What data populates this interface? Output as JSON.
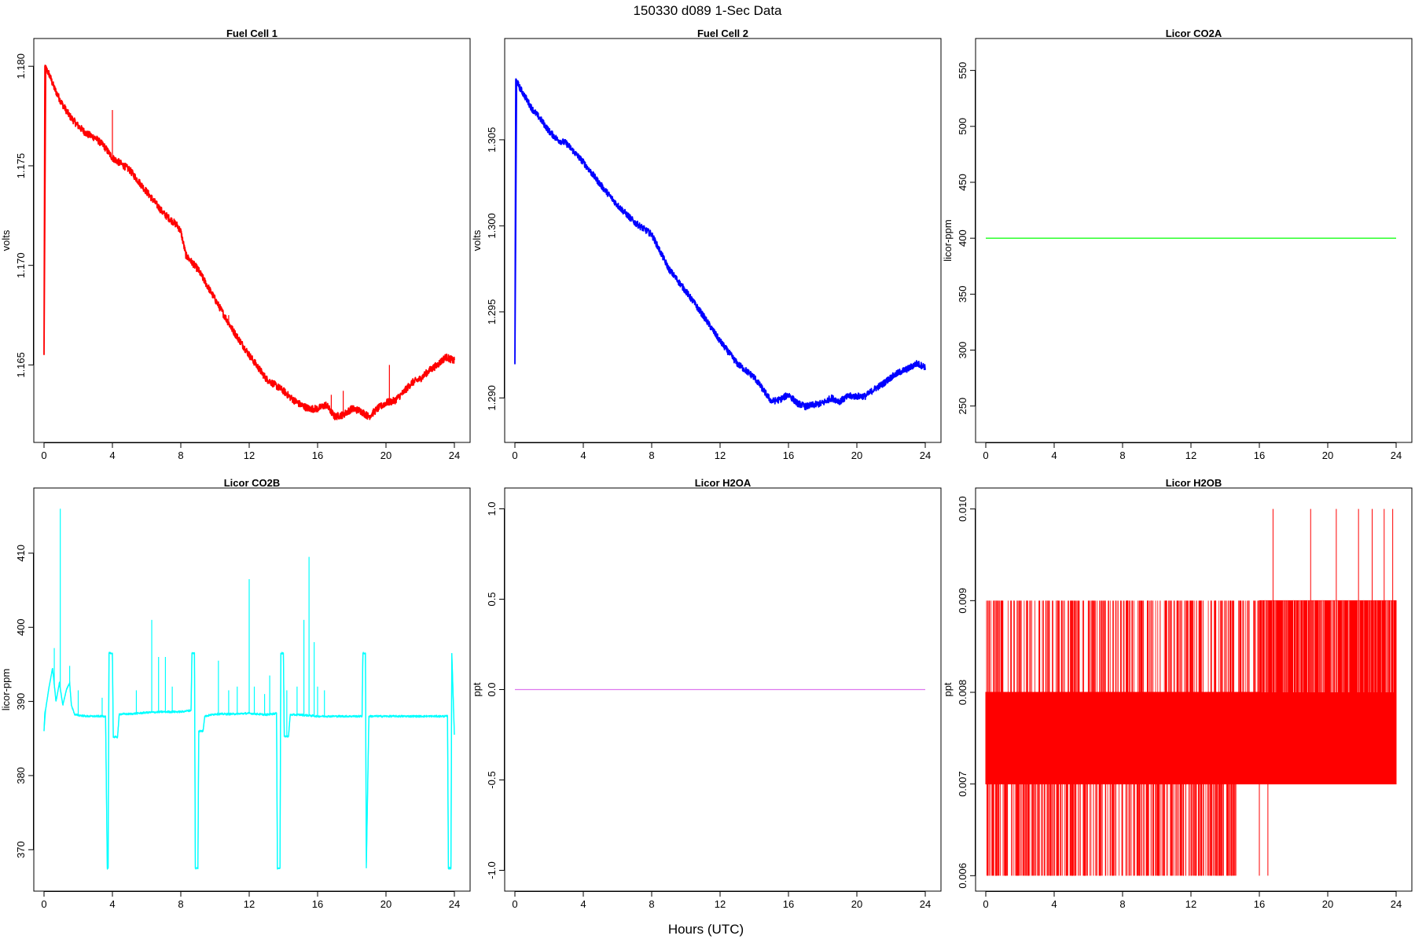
{
  "page": {
    "title": "150330   d089   1-Sec Data",
    "xlabel": "Hours (UTC)"
  },
  "chart_data": [
    {
      "type": "line",
      "title": "Fuel Cell 1",
      "ylabel": "volts",
      "xlim": [
        0,
        24
      ],
      "ylim": [
        1.1617,
        1.1808
      ],
      "xticks": [
        0,
        4,
        8,
        12,
        16,
        20,
        24
      ],
      "yticks": [
        1.165,
        1.17,
        1.175,
        1.18
      ],
      "ytick_labels": [
        "1.165",
        "1.170",
        "1.175",
        "1.180"
      ],
      "color": "#ff0000",
      "noise": 0.00018,
      "series": [
        {
          "x": [
            0,
            0.05,
            0.1,
            0.3,
            0.6,
            1.0,
            1.5,
            2.0,
            2.5,
            3.0,
            3.5,
            4.0,
            5.0,
            6.0,
            7.0,
            7.8,
            8.0,
            8.3,
            9.0,
            10.0,
            11.0,
            12.0,
            13.0,
            14.0,
            14.5,
            15.0,
            15.5,
            16.0,
            16.5,
            17.0,
            17.5,
            18.0,
            18.5,
            19.0,
            19.5,
            20.0,
            20.5,
            21.0,
            21.5,
            22.0,
            22.5,
            23.0,
            23.5,
            24.0
          ],
          "y": [
            1.1655,
            1.18,
            1.1799,
            1.1796,
            1.1789,
            1.1782,
            1.1775,
            1.177,
            1.1766,
            1.1764,
            1.176,
            1.1754,
            1.1748,
            1.1737,
            1.1726,
            1.172,
            1.1717,
            1.1705,
            1.1698,
            1.1683,
            1.1668,
            1.1655,
            1.1643,
            1.1637,
            1.1633,
            1.163,
            1.1628,
            1.1628,
            1.163,
            1.1624,
            1.1625,
            1.1628,
            1.1627,
            1.1624,
            1.1628,
            1.1631,
            1.1632,
            1.1636,
            1.1641,
            1.1643,
            1.1647,
            1.165,
            1.1654,
            1.1652
          ]
        }
      ],
      "spikes": [
        [
          4.0,
          1.1778
        ],
        [
          10.8,
          1.1675
        ],
        [
          17.5,
          1.1637
        ],
        [
          20.2,
          1.165
        ],
        [
          16.8,
          1.1635
        ]
      ]
    },
    {
      "type": "line",
      "title": "Fuel Cell 2",
      "ylabel": "volts",
      "xlim": [
        0,
        24
      ],
      "ylim": [
        1.2881,
        1.3102
      ],
      "xticks": [
        0,
        4,
        8,
        12,
        16,
        20,
        24
      ],
      "yticks": [
        1.29,
        1.295,
        1.3,
        1.305
      ],
      "ytick_labels": [
        "1.290",
        "1.295",
        "1.300",
        "1.305"
      ],
      "color": "#0000ff",
      "noise": 0.00019,
      "series": [
        {
          "x": [
            0,
            0.05,
            0.1,
            0.3,
            0.6,
            1.0,
            1.5,
            2.0,
            2.5,
            3.0,
            4.0,
            5.0,
            6.0,
            7.0,
            8.0,
            8.5,
            9.0,
            10.0,
            11.0,
            12.0,
            13.0,
            14.0,
            14.5,
            15.0,
            15.5,
            16.0,
            16.5,
            17.0,
            17.5,
            18.0,
            18.5,
            19.0,
            19.5,
            20.0,
            20.5,
            21.0,
            21.5,
            22.0,
            22.5,
            23.0,
            23.5,
            24.0
          ],
          "y": [
            1.292,
            1.3085,
            1.3084,
            1.308,
            1.3075,
            1.3068,
            1.3062,
            1.3055,
            1.305,
            1.3048,
            1.3037,
            1.3024,
            1.3012,
            1.3002,
            1.2995,
            1.2985,
            1.2975,
            1.2962,
            1.2948,
            1.2933,
            1.292,
            1.2912,
            1.2905,
            1.2898,
            1.2899,
            1.2902,
            1.2897,
            1.2895,
            1.2896,
            1.2897,
            1.29,
            1.2898,
            1.2901,
            1.2901,
            1.2901,
            1.2905,
            1.2908,
            1.2912,
            1.2915,
            1.2917,
            1.292,
            1.2918
          ]
        }
      ],
      "spikes": []
    },
    {
      "type": "line",
      "title": "Licor CO2A",
      "ylabel": "licor-ppm",
      "xlim": [
        0,
        24
      ],
      "ylim": [
        228,
        568
      ],
      "xticks": [
        0,
        4,
        8,
        12,
        16,
        20,
        24
      ],
      "yticks": [
        250,
        300,
        350,
        400,
        450,
        500,
        550
      ],
      "ytick_labels": [
        "250",
        "300",
        "350",
        "400",
        "450",
        "500",
        "550"
      ],
      "color": "#00ff00",
      "noise": 0,
      "series": [
        {
          "x": [
            0,
            24
          ],
          "y": [
            400,
            400
          ]
        }
      ],
      "spikes": []
    },
    {
      "type": "line",
      "title": "Licor CO2B",
      "ylabel": "licor-ppm",
      "xlim": [
        0,
        24
      ],
      "ylim": [
        366.0,
        417.2
      ],
      "xticks": [
        0,
        4,
        8,
        12,
        16,
        20,
        24
      ],
      "yticks": [
        370,
        380,
        390,
        400,
        410
      ],
      "ytick_labels": [
        "370",
        "380",
        "390",
        "400",
        "410"
      ],
      "color": "#00ffff",
      "noise": 0.15,
      "series": [
        {
          "x": [
            0,
            0.05,
            0.1,
            0.3,
            0.5,
            0.7,
            0.9,
            1.0,
            1.1,
            1.3,
            1.5,
            1.6,
            1.8,
            2.5,
            3.0,
            3.5,
            3.6,
            3.7,
            3.75,
            3.8,
            3.85,
            4.0,
            4.05,
            4.1,
            4.3,
            4.4,
            5.0,
            6.0,
            7.0,
            8.0,
            8.6,
            8.65,
            8.8,
            8.85,
            9.0,
            9.05,
            9.1,
            9.3,
            9.4,
            10.0,
            11.0,
            12.0,
            13.0,
            13.6,
            13.65,
            13.8,
            13.85,
            14.0,
            14.05,
            14.1,
            14.3,
            14.4,
            15.0,
            16.0,
            17.0,
            18.0,
            18.6,
            18.65,
            18.8,
            18.85,
            19.0,
            20.0,
            21.0,
            22.0,
            23.0,
            23.6,
            23.65,
            23.8,
            23.85,
            24.0
          ],
          "y": [
            386.0,
            388.5,
            389.0,
            392.0,
            394.5,
            390.0,
            392.5,
            391.0,
            389.5,
            391.5,
            392.5,
            389.5,
            388.2,
            388.0,
            388.0,
            388.0,
            388.0,
            367.5,
            367.5,
            396.5,
            396.5,
            396.5,
            385.2,
            385.2,
            385.2,
            388.3,
            388.3,
            388.5,
            388.6,
            388.6,
            388.8,
            396.5,
            396.5,
            367.5,
            367.5,
            386.0,
            386.0,
            386.0,
            388.0,
            388.3,
            388.3,
            388.4,
            388.2,
            388.4,
            367.5,
            367.5,
            396.5,
            396.5,
            385.3,
            385.3,
            385.3,
            388.2,
            388.2,
            388.0,
            388.0,
            388.0,
            388.0,
            396.5,
            396.5,
            367.5,
            388.0,
            388.0,
            388.0,
            388.0,
            388.0,
            388.0,
            367.5,
            367.5,
            396.5,
            385.5
          ]
        }
      ],
      "spikes": [
        [
          0.6,
          397.2
        ],
        [
          0.95,
          416.0
        ],
        [
          1.5,
          394.8
        ],
        [
          3.4,
          390.5
        ],
        [
          5.4,
          391.5
        ],
        [
          6.3,
          401.0
        ],
        [
          6.7,
          396.0
        ],
        [
          7.1,
          396.0
        ],
        [
          7.5,
          392.0
        ],
        [
          10.2,
          395.5
        ],
        [
          10.8,
          391.5
        ],
        [
          11.3,
          392.0
        ],
        [
          12.0,
          406.5
        ],
        [
          12.3,
          392.0
        ],
        [
          12.9,
          391.0
        ],
        [
          14.2,
          391.5
        ],
        [
          14.8,
          392.0
        ],
        [
          15.2,
          401.0
        ],
        [
          15.5,
          409.5
        ],
        [
          16.0,
          392.0
        ],
        [
          16.4,
          391.5
        ],
        [
          15.8,
          398.0
        ],
        [
          13.2,
          393.5
        ],
        [
          2.0,
          391.5
        ]
      ]
    },
    {
      "type": "line",
      "title": "Licor H2OA",
      "ylabel": "ppt",
      "xlim": [
        0,
        24
      ],
      "ylim": [
        -1.05,
        1.05
      ],
      "xticks": [
        0,
        4,
        8,
        12,
        16,
        20,
        24
      ],
      "yticks": [
        -1.0,
        -0.5,
        0.0,
        0.5,
        1.0
      ],
      "ytick_labels": [
        "-1.0",
        "-0.5",
        "0.0",
        "0.5",
        "1.0"
      ],
      "color": "#dd77ee",
      "noise": 0,
      "series": [
        {
          "x": [
            0,
            24
          ],
          "y": [
            0,
            0
          ]
        }
      ],
      "spikes": []
    },
    {
      "type": "line",
      "title": "Licor H2OB",
      "ylabel": "ppt",
      "xlim": [
        0,
        24
      ],
      "ylim": [
        0.00596,
        0.0101
      ],
      "xticks": [
        0,
        4,
        8,
        12,
        16,
        20,
        24
      ],
      "yticks": [
        0.006,
        0.007,
        0.008,
        0.009,
        0.01
      ],
      "ytick_labels": [
        "0.006",
        "0.007",
        "0.008",
        "0.009",
        "0.010"
      ],
      "color": "#ff0000",
      "noise": 0,
      "series": [
        {
          "x": [
            0,
            24
          ],
          "y": [
            0.007,
            0.007
          ]
        }
      ],
      "band": {
        "x": [
          0,
          16,
          24
        ],
        "y_low": [
          0.007,
          0.007,
          0.007
        ],
        "y_high": [
          0.008,
          0.008,
          0.009
        ]
      },
      "spikes_up": [
        [
          0.05,
          0.009
        ],
        [
          1.0,
          0.009
        ],
        [
          2.4,
          0.009
        ],
        [
          2.6,
          0.009
        ],
        [
          3.6,
          0.009
        ],
        [
          4.2,
          0.009
        ],
        [
          5.0,
          0.009
        ],
        [
          5.4,
          0.009
        ],
        [
          6.2,
          0.009
        ],
        [
          7.0,
          0.009
        ],
        [
          7.6,
          0.009
        ],
        [
          8.3,
          0.009
        ],
        [
          9.0,
          0.009
        ],
        [
          9.5,
          0.009
        ],
        [
          10.2,
          0.009
        ],
        [
          10.8,
          0.009
        ],
        [
          11.4,
          0.009
        ],
        [
          12.0,
          0.009
        ],
        [
          12.6,
          0.009
        ],
        [
          13.2,
          0.009
        ],
        [
          13.8,
          0.009
        ],
        [
          14.3,
          0.009
        ],
        [
          14.9,
          0.009
        ],
        [
          15.4,
          0.009
        ],
        [
          16.8,
          0.01
        ],
        [
          19.0,
          0.01
        ],
        [
          20.5,
          0.01
        ],
        [
          21.8,
          0.01
        ],
        [
          22.6,
          0.01
        ],
        [
          23.3,
          0.01
        ],
        [
          23.8,
          0.01
        ]
      ],
      "spikes_down": [
        [
          0.1,
          0.006
        ],
        [
          0.6,
          0.006
        ],
        [
          1.2,
          0.006
        ],
        [
          1.9,
          0.006
        ],
        [
          2.5,
          0.006
        ],
        [
          3.1,
          0.006
        ],
        [
          3.8,
          0.006
        ],
        [
          4.4,
          0.006
        ],
        [
          5.1,
          0.006
        ],
        [
          5.7,
          0.006
        ],
        [
          6.3,
          0.006
        ],
        [
          7.0,
          0.006
        ],
        [
          7.6,
          0.006
        ],
        [
          8.2,
          0.006
        ],
        [
          8.9,
          0.006
        ],
        [
          9.5,
          0.006
        ],
        [
          10.1,
          0.006
        ],
        [
          10.8,
          0.006
        ],
        [
          11.4,
          0.006
        ],
        [
          12.0,
          0.006
        ],
        [
          12.7,
          0.006
        ],
        [
          13.3,
          0.006
        ],
        [
          13.9,
          0.006
        ],
        [
          14.5,
          0.006
        ],
        [
          16.0,
          0.006
        ],
        [
          16.5,
          0.006
        ],
        [
          16.6,
          0.007
        ],
        [
          18.0,
          0.007
        ],
        [
          19.5,
          0.007
        ],
        [
          21.0,
          0.007
        ],
        [
          22.5,
          0.007
        ],
        [
          23.5,
          0.007
        ]
      ]
    }
  ]
}
